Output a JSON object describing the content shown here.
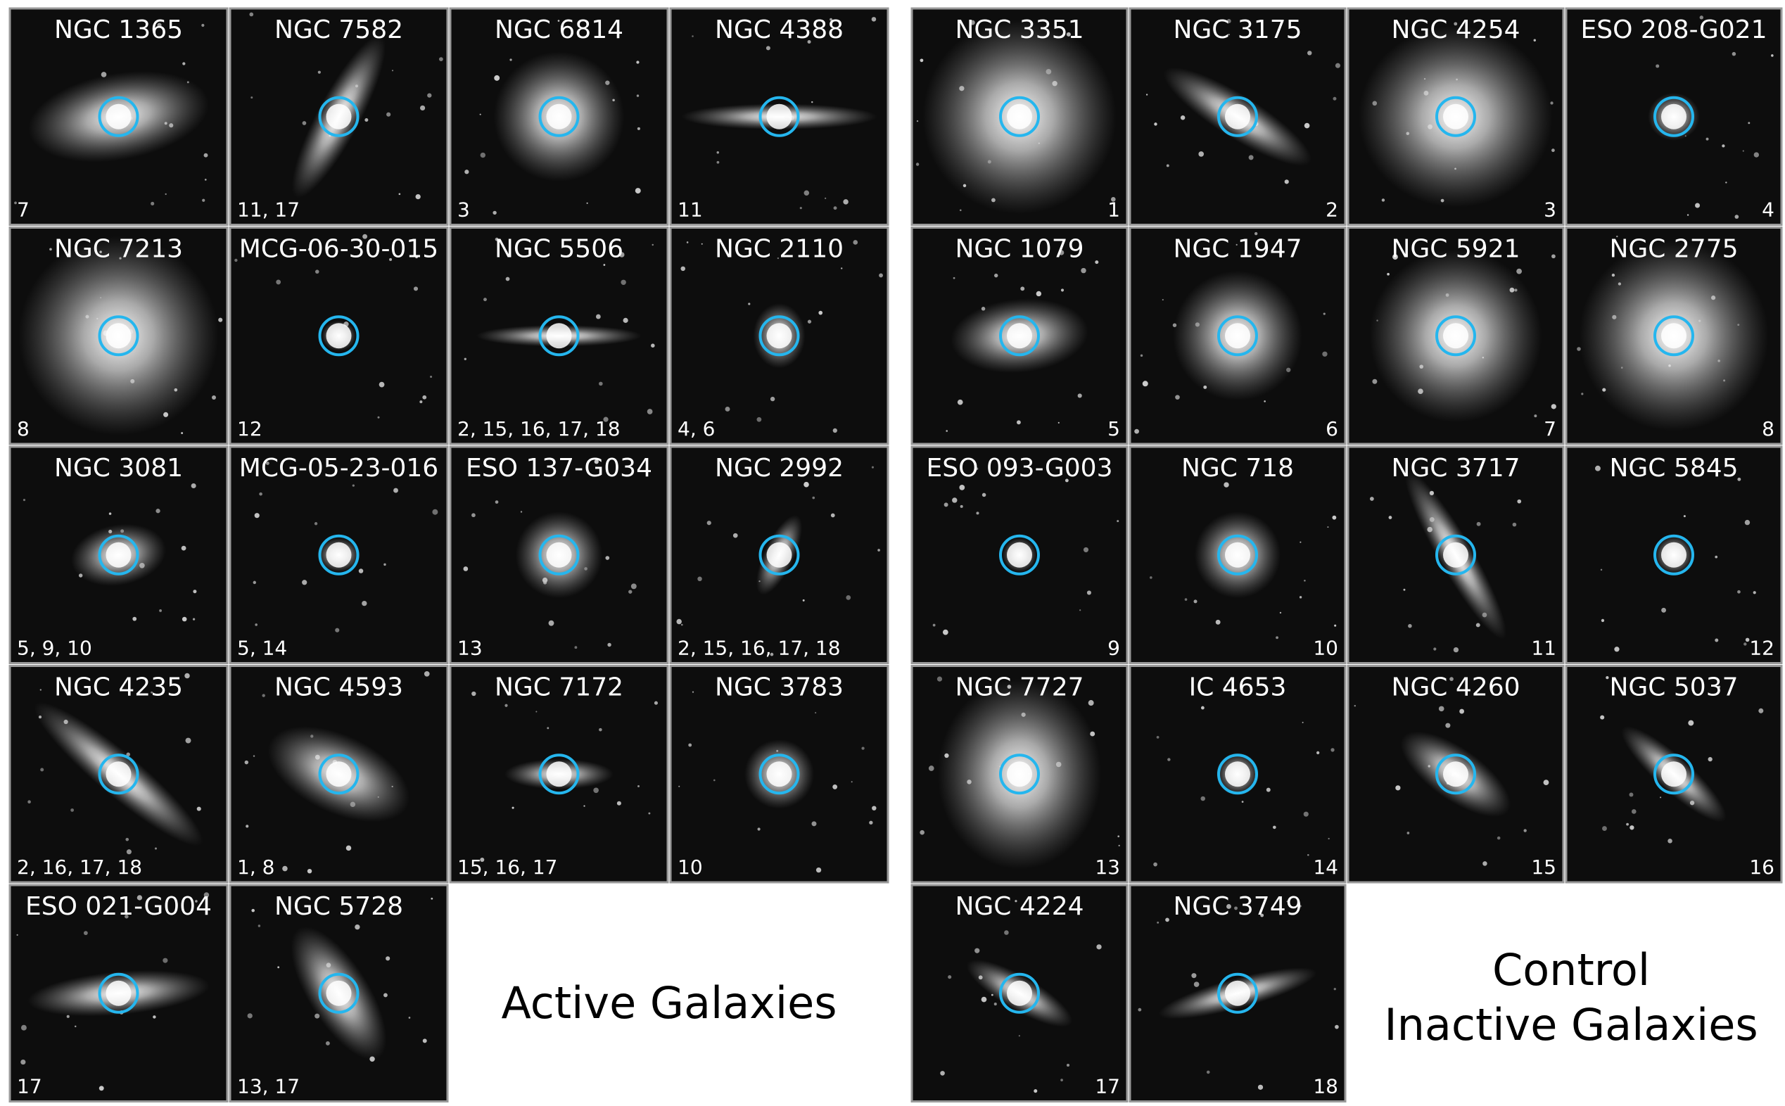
{
  "active": {
    "label": "Active Galaxies",
    "galaxies": [
      {
        "name": "NGC 1365",
        "refs": "7"
      },
      {
        "name": "NGC 7582",
        "refs": "11, 17"
      },
      {
        "name": "NGC 6814",
        "refs": "3"
      },
      {
        "name": "NGC 4388",
        "refs": "11"
      },
      {
        "name": "NGC 7213",
        "refs": "8"
      },
      {
        "name": "MCG-06-30-015",
        "refs": "12"
      },
      {
        "name": "NGC 5506",
        "refs": "2, 15, 16, 17, 18"
      },
      {
        "name": "NGC 2110",
        "refs": "4, 6"
      },
      {
        "name": "NGC 3081",
        "refs": "5, 9, 10"
      },
      {
        "name": "MCG-05-23-016",
        "refs": "5, 14"
      },
      {
        "name": "ESO 137-G034",
        "refs": "13"
      },
      {
        "name": "NGC 2992",
        "refs": "2, 15, 16, 17, 18"
      },
      {
        "name": "NGC 4235",
        "refs": "2, 16, 17, 18"
      },
      {
        "name": "NGC 4593",
        "refs": "1, 8"
      },
      {
        "name": "NGC 7172",
        "refs": "15, 16, 17"
      },
      {
        "name": "NGC 3783",
        "refs": "10"
      },
      {
        "name": "ESO 021-G004",
        "refs": "17"
      },
      {
        "name": "NGC 5728",
        "refs": "13, 17"
      }
    ]
  },
  "control": {
    "label_lines": [
      "Control",
      "Inactive Galaxies"
    ],
    "galaxies": [
      {
        "name": "NGC 3351",
        "refs": "1"
      },
      {
        "name": "NGC 3175",
        "refs": "2"
      },
      {
        "name": "NGC 4254",
        "refs": "3"
      },
      {
        "name": "ESO 208-G021",
        "refs": "4"
      },
      {
        "name": "NGC 1079",
        "refs": "5"
      },
      {
        "name": "NGC 1947",
        "refs": "6"
      },
      {
        "name": "NGC 5921",
        "refs": "7"
      },
      {
        "name": "NGC 2775",
        "refs": "8"
      },
      {
        "name": "ESO 093-G003",
        "refs": "9"
      },
      {
        "name": "NGC 718",
        "refs": "10"
      },
      {
        "name": "NGC 3717",
        "refs": "11"
      },
      {
        "name": "NGC 5845",
        "refs": "12"
      },
      {
        "name": "NGC 7727",
        "refs": "13"
      },
      {
        "name": "IC 4653",
        "refs": "14"
      },
      {
        "name": "NGC 4260",
        "refs": "15"
      },
      {
        "name": "NGC 5037",
        "refs": "16"
      },
      {
        "name": "NGC 4224",
        "refs": "17"
      },
      {
        "name": "NGC 3749",
        "refs": "18"
      }
    ]
  }
}
